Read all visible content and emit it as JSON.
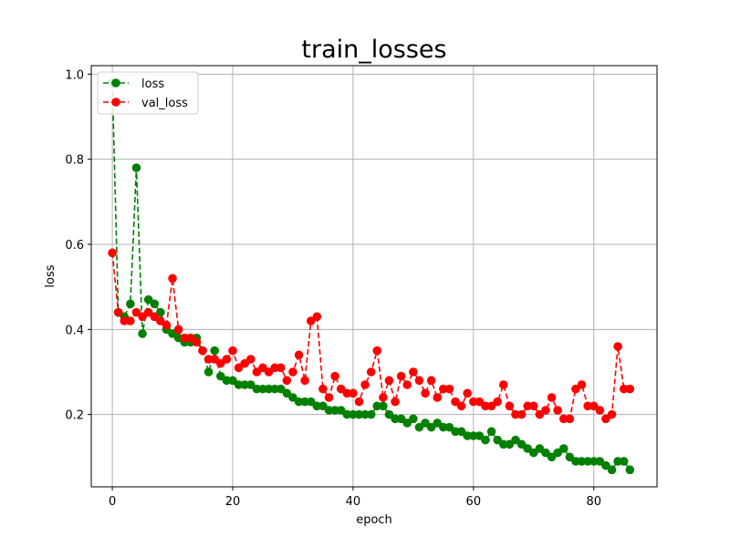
{
  "chart_data": {
    "type": "line",
    "title": "train_losses",
    "xlabel": "epoch",
    "ylabel": "loss",
    "xlim": [
      -3.5,
      90.5
    ],
    "ylim": [
      0.03,
      1.02
    ],
    "xticks": [
      0,
      20,
      40,
      60,
      80
    ],
    "yticks": [
      0.2,
      0.4,
      0.6,
      0.8,
      1.0
    ],
    "xtick_labels": [
      "0",
      "20",
      "40",
      "60",
      "80"
    ],
    "ytick_labels": [
      "0.2",
      "0.4",
      "0.6",
      "0.8",
      "1.0"
    ],
    "grid": true,
    "legend_position": "top-left",
    "x": [
      0,
      1,
      2,
      3,
      4,
      5,
      6,
      7,
      8,
      9,
      10,
      11,
      12,
      13,
      14,
      15,
      16,
      17,
      18,
      19,
      20,
      21,
      22,
      23,
      24,
      25,
      26,
      27,
      28,
      29,
      30,
      31,
      32,
      33,
      34,
      35,
      36,
      37,
      38,
      39,
      40,
      41,
      42,
      43,
      44,
      45,
      46,
      47,
      48,
      49,
      50,
      51,
      52,
      53,
      54,
      55,
      56,
      57,
      58,
      59,
      60,
      61,
      62,
      63,
      64,
      65,
      66,
      67,
      68,
      69,
      70,
      71,
      72,
      73,
      74,
      75,
      76,
      77,
      78,
      79,
      80,
      81,
      82,
      83,
      84,
      85,
      86
    ],
    "series": [
      {
        "name": "loss",
        "color": "#008000",
        "values": [
          0.98,
          0.44,
          0.43,
          0.46,
          0.78,
          0.39,
          0.47,
          0.46,
          0.44,
          0.4,
          0.39,
          0.38,
          0.37,
          0.37,
          0.38,
          0.35,
          0.3,
          0.35,
          0.29,
          0.28,
          0.28,
          0.27,
          0.27,
          0.27,
          0.26,
          0.26,
          0.26,
          0.26,
          0.26,
          0.25,
          0.24,
          0.23,
          0.23,
          0.23,
          0.22,
          0.22,
          0.21,
          0.21,
          0.21,
          0.2,
          0.2,
          0.2,
          0.2,
          0.2,
          0.22,
          0.22,
          0.2,
          0.19,
          0.19,
          0.18,
          0.19,
          0.17,
          0.18,
          0.17,
          0.18,
          0.17,
          0.17,
          0.16,
          0.16,
          0.15,
          0.15,
          0.15,
          0.14,
          0.16,
          0.14,
          0.13,
          0.13,
          0.14,
          0.13,
          0.12,
          0.11,
          0.12,
          0.11,
          0.1,
          0.11,
          0.12,
          0.1,
          0.09,
          0.09,
          0.09,
          0.09,
          0.09,
          0.08,
          0.07,
          0.09,
          0.09,
          0.07
        ]
      },
      {
        "name": "val_loss",
        "color": "#ff0000",
        "values": [
          0.58,
          0.44,
          0.42,
          0.42,
          0.44,
          0.43,
          0.44,
          0.43,
          0.42,
          0.41,
          0.52,
          0.4,
          0.38,
          0.38,
          0.37,
          0.35,
          0.33,
          0.33,
          0.32,
          0.33,
          0.35,
          0.31,
          0.32,
          0.33,
          0.3,
          0.31,
          0.3,
          0.31,
          0.31,
          0.28,
          0.3,
          0.34,
          0.28,
          0.42,
          0.43,
          0.26,
          0.24,
          0.29,
          0.26,
          0.25,
          0.25,
          0.23,
          0.27,
          0.3,
          0.35,
          0.24,
          0.28,
          0.23,
          0.29,
          0.27,
          0.3,
          0.28,
          0.25,
          0.28,
          0.24,
          0.26,
          0.26,
          0.23,
          0.22,
          0.25,
          0.23,
          0.23,
          0.22,
          0.22,
          0.23,
          0.27,
          0.22,
          0.2,
          0.2,
          0.22,
          0.22,
          0.2,
          0.21,
          0.24,
          0.21,
          0.19,
          0.19,
          0.26,
          0.27,
          0.22,
          0.22,
          0.21,
          0.19,
          0.2,
          0.36,
          0.26,
          0.26
        ]
      }
    ]
  }
}
